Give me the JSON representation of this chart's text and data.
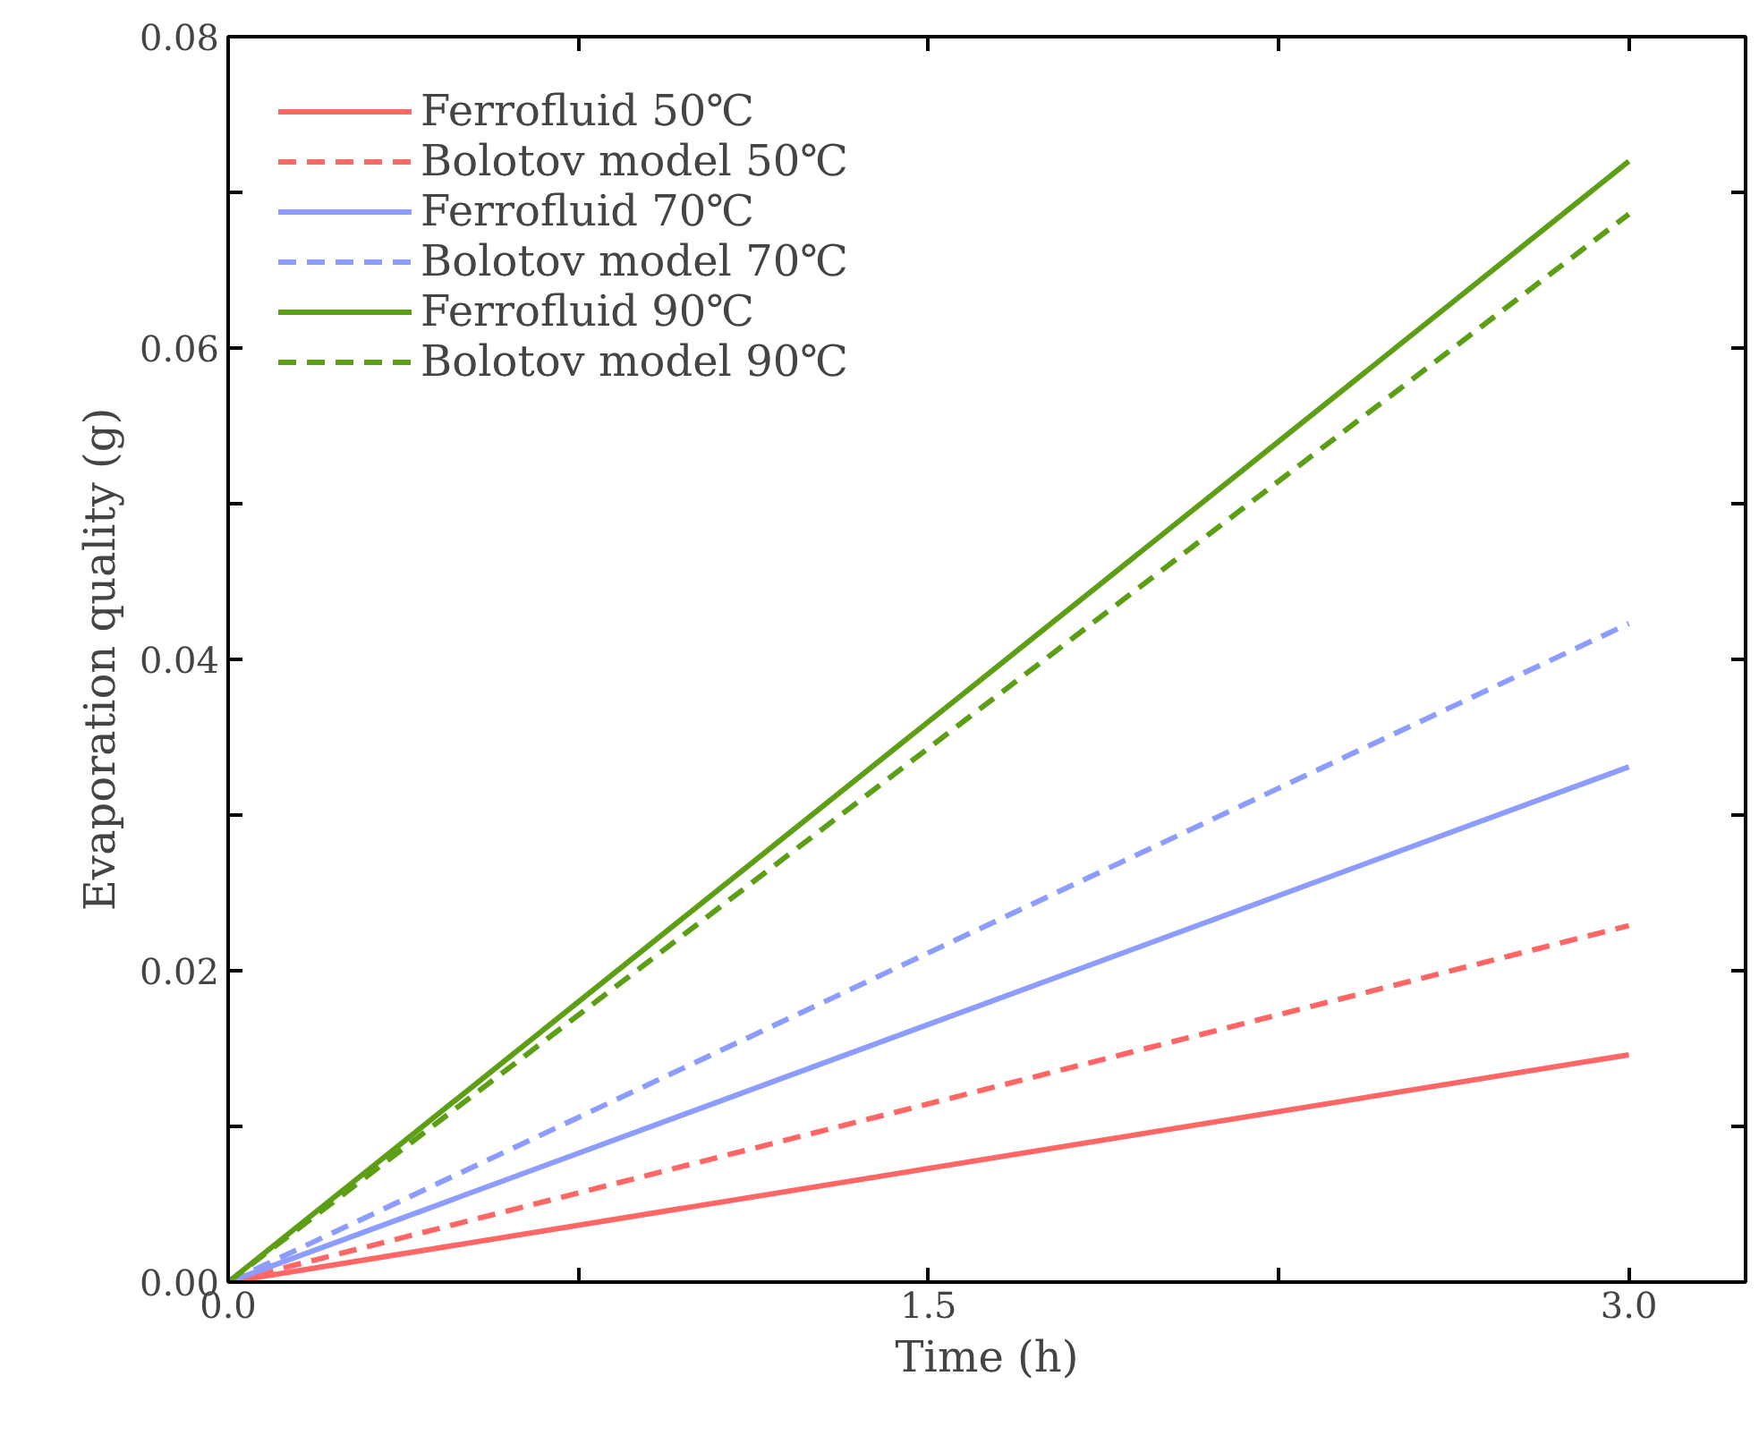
{
  "chart_data": {
    "type": "line",
    "xlabel": "Time (h)",
    "ylabel": "Evaporation quality (g)",
    "x": [
      0,
      3.0
    ],
    "series": [
      {
        "name": "Ferrofluid 50℃",
        "color": "#ff6666",
        "values": [
          0,
          0.0146
        ],
        "line_style": "solid"
      },
      {
        "name": "Bolotov model 50℃",
        "color": "#ff6666",
        "values": [
          0,
          0.0229
        ],
        "line_style": "dashed"
      },
      {
        "name": "Ferrofluid 70℃",
        "color": "#8c9cff",
        "values": [
          0,
          0.0331
        ],
        "line_style": "solid"
      },
      {
        "name": "Bolotov model 70℃",
        "color": "#8c9cff",
        "values": [
          0,
          0.0423
        ],
        "line_style": "dashed"
      },
      {
        "name": "Ferrofluid 90℃",
        "color": "#5c9e14",
        "values": [
          0,
          0.072
        ],
        "line_style": "solid"
      },
      {
        "name": "Bolotov model 90℃",
        "color": "#5c9e14",
        "values": [
          0,
          0.0686
        ],
        "line_style": "dashed"
      }
    ],
    "xlim": [
      0,
      3.25
    ],
    "xticks": [
      {
        "value": 0,
        "label": "0.0"
      },
      {
        "value": 0.75,
        "label": null
      },
      {
        "value": 1.5,
        "label": "1.5"
      },
      {
        "value": 2.25,
        "label": null
      },
      {
        "value": 3.0,
        "label": "3.0"
      }
    ],
    "ylim": [
      0,
      0.08
    ],
    "yticks": [
      {
        "value": 0,
        "label": "0.00"
      },
      {
        "value": 0.01,
        "label": null
      },
      {
        "value": 0.02,
        "label": "0.02"
      },
      {
        "value": 0.03,
        "label": null
      },
      {
        "value": 0.04,
        "label": "0.04"
      },
      {
        "value": 0.05,
        "label": null
      },
      {
        "value": 0.06,
        "label": "0.06"
      },
      {
        "value": 0.07,
        "label": null
      },
      {
        "value": 0.08,
        "label": "0.08"
      }
    ],
    "grid": false,
    "legend": "top left",
    "marker": "none"
  }
}
